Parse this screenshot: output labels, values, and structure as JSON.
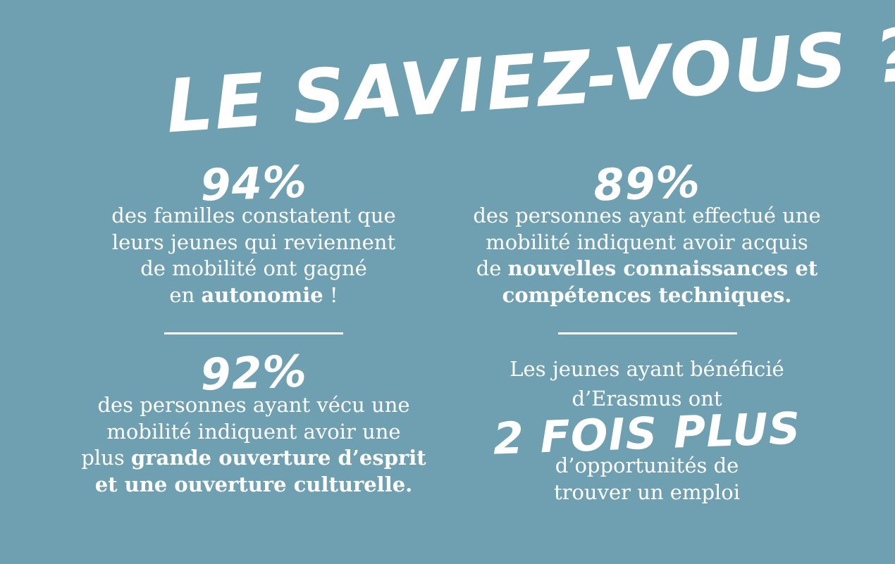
{
  "title": "LE SAVIEZ-VOUS ?",
  "stats": {
    "top_left": {
      "value": "94%",
      "line1": "des familles constatent que",
      "line2": "leurs jeunes qui reviennent",
      "line3": "de mobilité ont gagné",
      "line4_pre": "en ",
      "line4_bold": "autonomie",
      "line4_post": " !"
    },
    "top_right": {
      "value": "89%",
      "line1": "des personnes ayant effectué une",
      "line2": "mobilité indiquent avoir acquis",
      "line3_pre": "de ",
      "line3_bold": "nouvelles connaissances et",
      "line4_bold": "compétences techniques."
    },
    "bottom_left": {
      "value": "92%",
      "line1": "des personnes ayant vécu une",
      "line2": "mobilité indiquent avoir une",
      "line3_pre": "plus ",
      "line3_bold": "grande ouverture d’esprit",
      "line4_bold": "et une ouverture culturelle."
    },
    "bottom_right": {
      "line1": "Les jeunes ayant bénéficié",
      "line2": "d’Erasmus ont",
      "value": "2 FOIS PLUS",
      "line3": "d’opportunités de",
      "line4": "trouver un emploi"
    }
  },
  "colors": {
    "background": "#6fa0b2",
    "text": "#ffffff"
  }
}
